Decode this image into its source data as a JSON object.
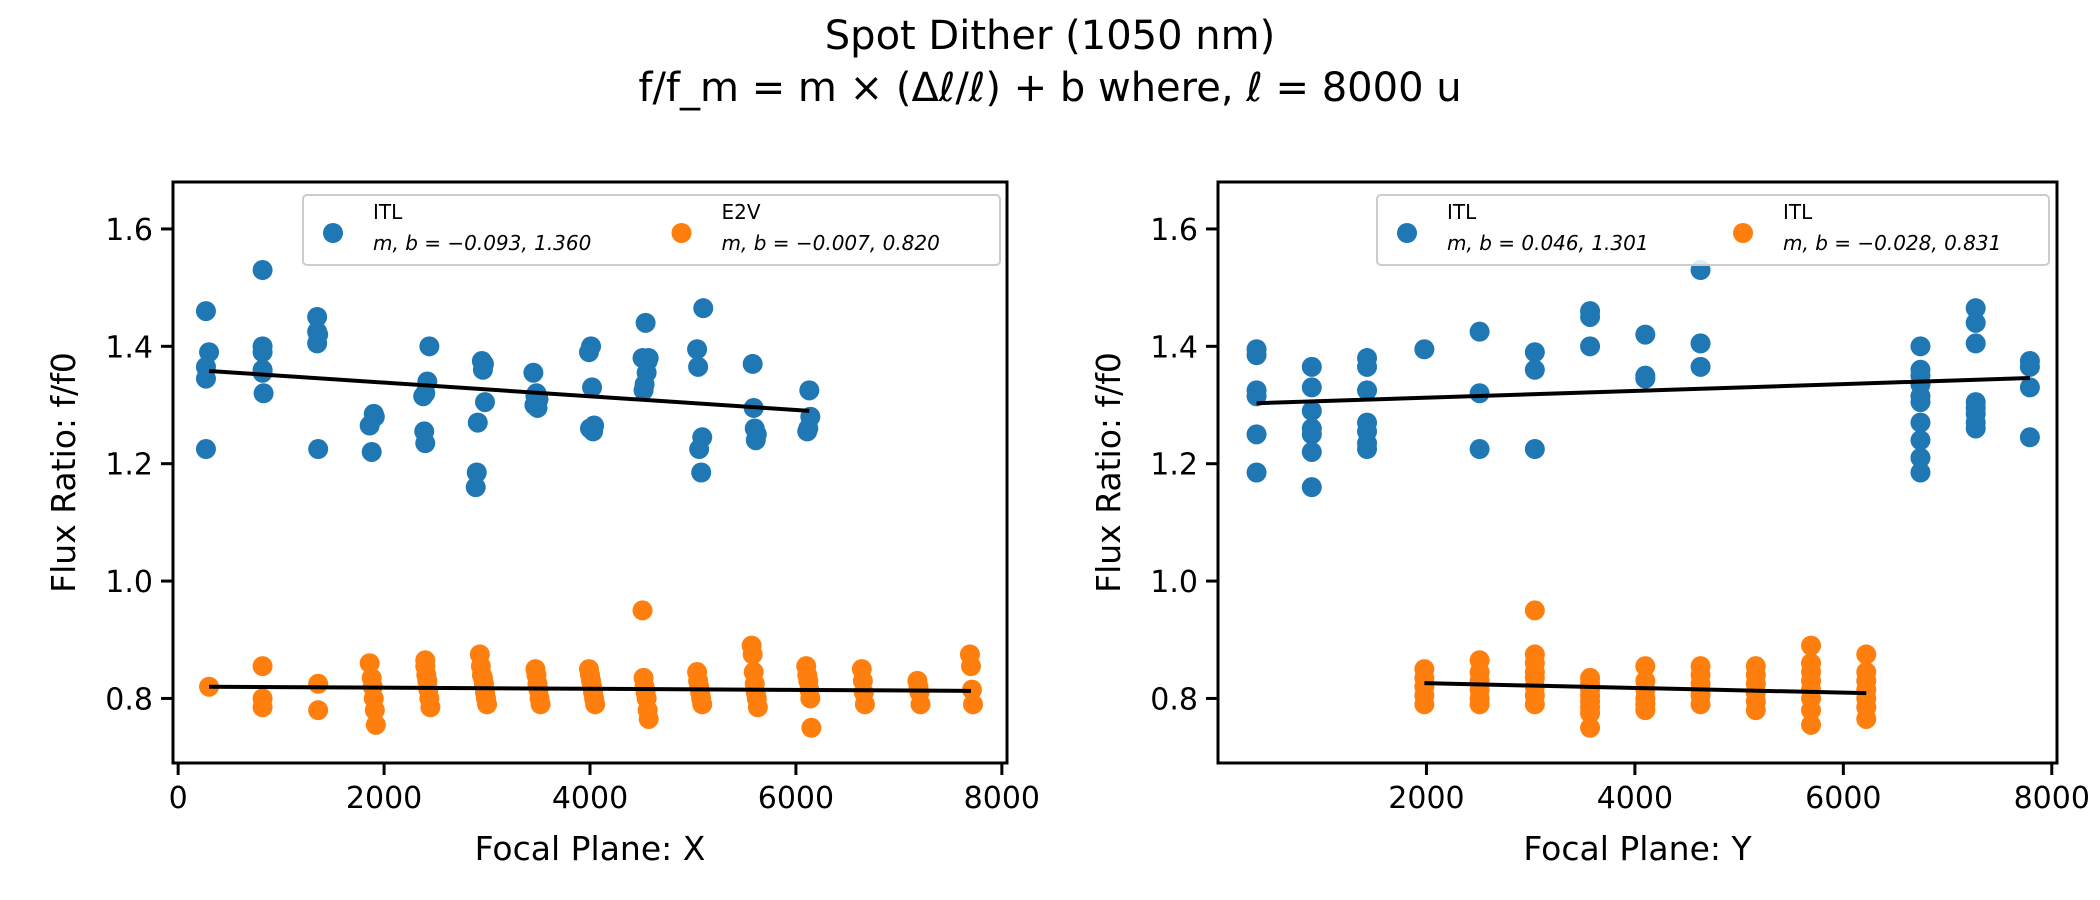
{
  "title": "Spot Dither (1050 nm)",
  "subtitle": "f/f_m = m × (Δℓ/ℓ) + b   where, ℓ = 8000 u",
  "colors": {
    "blue": "#1f77b4",
    "orange": "#ff7f0e",
    "fit": "#000000"
  },
  "chart_data": [
    {
      "type": "scatter",
      "xlabel": "Focal Plane: X",
      "ylabel": "Flux Ratio: f/f0",
      "xlim": [
        -50,
        8050
      ],
      "ylim": [
        0.69,
        1.68
      ],
      "xticks": [
        0,
        2000,
        4000,
        6000,
        8000
      ],
      "yticks": [
        0.8,
        1.0,
        1.2,
        1.4,
        1.6
      ],
      "xtick_labels": [
        "0",
        "2000",
        "4000",
        "6000",
        "8000"
      ],
      "ytick_labels": [
        "0.8",
        "1.0",
        "1.2",
        "1.4",
        "1.6"
      ],
      "legend_position": "top-right",
      "legend": [
        {
          "name": "ITL",
          "text": "m, b = −0.093, 1.360",
          "color": "blue"
        },
        {
          "name": "E2V",
          "text": "m, b = −0.007, 0.820",
          "color": "orange"
        }
      ],
      "series": [
        {
          "name": "ITL",
          "color": "blue",
          "x": [
            270,
            270,
            270,
            270,
            300,
            820,
            820,
            820,
            820,
            820,
            830,
            1350,
            1350,
            1350,
            1360,
            1360,
            1860,
            1880,
            1900,
            1910,
            2380,
            2390,
            2400,
            2400,
            2420,
            2440,
            2890,
            2900,
            2910,
            2950,
            2960,
            2970,
            2980,
            3450,
            3460,
            3470,
            3480,
            3490,
            3500,
            3990,
            4000,
            4010,
            4020,
            4030,
            4040,
            4510,
            4520,
            4530,
            4540,
            4550,
            4560,
            4570,
            5040,
            5050,
            5060,
            5080,
            5090,
            5100,
            5580,
            5590,
            5600,
            5610,
            5620,
            6110,
            6120,
            6130,
            6140
          ],
          "y": [
            1.46,
            1.365,
            1.345,
            1.225,
            1.39,
            1.53,
            1.4,
            1.39,
            1.36,
            1.355,
            1.32,
            1.45,
            1.425,
            1.405,
            1.42,
            1.225,
            1.265,
            1.22,
            1.285,
            1.28,
            1.315,
            1.255,
            1.235,
            1.32,
            1.34,
            1.4,
            1.16,
            1.185,
            1.27,
            1.375,
            1.36,
            1.37,
            1.305,
            1.355,
            1.3,
            1.315,
            1.32,
            1.295,
            1.31,
            1.39,
            1.26,
            1.4,
            1.33,
            1.255,
            1.265,
            1.38,
            1.325,
            1.335,
            1.44,
            1.355,
            1.375,
            1.38,
            1.395,
            1.365,
            1.225,
            1.185,
            1.245,
            1.465,
            1.37,
            1.295,
            1.26,
            1.24,
            1.25,
            1.255,
            1.26,
            1.325,
            1.28
          ]
        },
        {
          "name": "E2V",
          "color": "orange",
          "x": [
            300,
            820,
            820,
            820,
            1360,
            1360,
            1860,
            1880,
            1890,
            1900,
            1910,
            1920,
            2400,
            2400,
            2410,
            2420,
            2430,
            2440,
            2450,
            2930,
            2940,
            2950,
            2960,
            2970,
            2980,
            2990,
            3000,
            3470,
            3480,
            3490,
            3500,
            3510,
            3520,
            3990,
            4000,
            4010,
            4020,
            4030,
            4040,
            4050,
            4510,
            4520,
            4530,
            4540,
            4550,
            4560,
            4570,
            5040,
            5050,
            5060,
            5070,
            5080,
            5090,
            5570,
            5580,
            5590,
            5600,
            5610,
            5620,
            5630,
            6100,
            6110,
            6120,
            6130,
            6140,
            6150,
            6640,
            6650,
            6660,
            6670,
            7180,
            7190,
            7200,
            7210,
            7690,
            7700,
            7710,
            7720
          ],
          "y": [
            0.82,
            0.855,
            0.8,
            0.785,
            0.825,
            0.78,
            0.86,
            0.835,
            0.82,
            0.8,
            0.78,
            0.755,
            0.865,
            0.855,
            0.84,
            0.83,
            0.815,
            0.8,
            0.785,
            0.875,
            0.855,
            0.84,
            0.835,
            0.825,
            0.81,
            0.8,
            0.79,
            0.85,
            0.84,
            0.825,
            0.815,
            0.8,
            0.79,
            0.85,
            0.84,
            0.83,
            0.82,
            0.81,
            0.8,
            0.79,
            0.95,
            0.835,
            0.82,
            0.81,
            0.8,
            0.78,
            0.765,
            0.845,
            0.83,
            0.82,
            0.81,
            0.8,
            0.79,
            0.89,
            0.875,
            0.845,
            0.825,
            0.81,
            0.8,
            0.785,
            0.855,
            0.84,
            0.83,
            0.815,
            0.8,
            0.75,
            0.85,
            0.83,
            0.81,
            0.79,
            0.83,
            0.82,
            0.81,
            0.79,
            0.875,
            0.855,
            0.815,
            0.79
          ]
        }
      ],
      "fit_lines": [
        {
          "name": "ITL fit",
          "x": [
            300,
            6130
          ],
          "y": [
            1.358,
            1.29
          ]
        },
        {
          "name": "E2V fit",
          "x": [
            300,
            7700
          ],
          "y": [
            0.82,
            0.813
          ]
        }
      ]
    },
    {
      "type": "scatter",
      "xlabel": "Focal Plane: Y",
      "ylabel": "Flux Ratio: f/f0",
      "xlim": [
        0,
        8050
      ],
      "ylim": [
        0.69,
        1.68
      ],
      "xticks": [
        2000,
        4000,
        6000,
        8000
      ],
      "yticks": [
        0.8,
        1.0,
        1.2,
        1.4,
        1.6
      ],
      "xtick_labels": [
        "2000",
        "4000",
        "6000",
        "8000"
      ],
      "ytick_labels": [
        "0.8",
        "1.0",
        "1.2",
        "1.4",
        "1.6"
      ],
      "legend_position": "top-right",
      "legend": [
        {
          "name": "ITL",
          "text": "m, b = 0.046, 1.301",
          "color": "blue"
        },
        {
          "name": "ITL",
          "text": "m, b = −0.028, 0.831",
          "color": "orange"
        }
      ],
      "series": [
        {
          "name": "ITL",
          "color": "blue",
          "x": [
            370,
            370,
            370,
            370,
            370,
            370,
            900,
            900,
            900,
            900,
            900,
            900,
            900,
            1430,
            1430,
            1430,
            1430,
            1430,
            1430,
            1430,
            1980,
            2510,
            2510,
            2510,
            3040,
            3040,
            3040,
            3570,
            3570,
            3570,
            4100,
            4100,
            4100,
            4630,
            4630,
            4630,
            6740,
            6740,
            6740,
            6740,
            6740,
            6740,
            6740,
            6740,
            6740,
            6740,
            7270,
            7270,
            7270,
            7270,
            7270,
            7270,
            7270,
            7270,
            7790,
            7790,
            7790,
            7790
          ],
          "y": [
            1.395,
            1.385,
            1.325,
            1.315,
            1.25,
            1.185,
            1.365,
            1.33,
            1.29,
            1.26,
            1.25,
            1.22,
            1.16,
            1.38,
            1.365,
            1.325,
            1.27,
            1.255,
            1.235,
            1.225,
            1.395,
            1.425,
            1.32,
            1.225,
            1.39,
            1.36,
            1.225,
            1.46,
            1.45,
            1.4,
            1.42,
            1.35,
            1.345,
            1.53,
            1.405,
            1.365,
            1.4,
            1.36,
            1.35,
            1.335,
            1.315,
            1.305,
            1.27,
            1.24,
            1.21,
            1.185,
            1.465,
            1.44,
            1.405,
            1.305,
            1.295,
            1.285,
            1.27,
            1.26,
            1.375,
            1.365,
            1.33,
            1.245
          ]
        },
        {
          "name": "ITL",
          "color": "orange",
          "x": [
            1980,
            1980,
            1980,
            1980,
            1980,
            2510,
            2510,
            2510,
            2510,
            2510,
            2510,
            3040,
            3040,
            3040,
            3040,
            3040,
            3040,
            3040,
            3040,
            3570,
            3570,
            3570,
            3570,
            3570,
            3570,
            3570,
            3570,
            4100,
            4100,
            4100,
            4100,
            4100,
            4100,
            4630,
            4630,
            4630,
            4630,
            4630,
            4630,
            5160,
            5160,
            5160,
            5160,
            5160,
            5160,
            5690,
            5690,
            5690,
            5690,
            5690,
            5690,
            5690,
            5690,
            6220,
            6220,
            6220,
            6220,
            6220,
            6220,
            6220
          ],
          "y": [
            0.85,
            0.835,
            0.82,
            0.805,
            0.79,
            0.865,
            0.845,
            0.83,
            0.815,
            0.8,
            0.79,
            0.95,
            0.875,
            0.86,
            0.845,
            0.835,
            0.82,
            0.805,
            0.79,
            0.835,
            0.825,
            0.815,
            0.805,
            0.795,
            0.785,
            0.775,
            0.75,
            0.855,
            0.83,
            0.815,
            0.8,
            0.79,
            0.78,
            0.855,
            0.84,
            0.825,
            0.815,
            0.805,
            0.79,
            0.855,
            0.84,
            0.825,
            0.81,
            0.795,
            0.78,
            0.89,
            0.86,
            0.845,
            0.83,
            0.815,
            0.8,
            0.78,
            0.755,
            0.875,
            0.845,
            0.83,
            0.815,
            0.8,
            0.785,
            0.765
          ]
        }
      ],
      "fit_lines": [
        {
          "name": "ITL fit",
          "x": [
            370,
            7790
          ],
          "y": [
            1.303,
            1.346
          ]
        },
        {
          "name": "ITL fit",
          "x": [
            1980,
            6220
          ],
          "y": [
            0.826,
            0.809
          ]
        }
      ]
    }
  ]
}
